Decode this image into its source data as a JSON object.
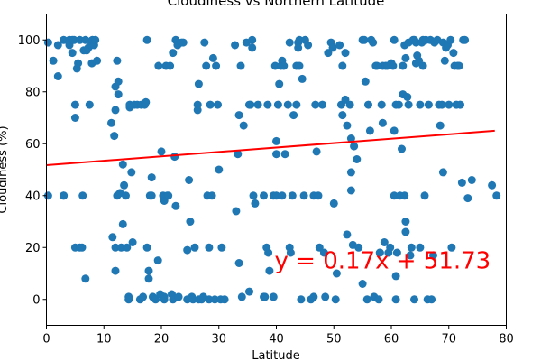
{
  "chart_data": {
    "type": "scatter",
    "title": "Cloudiness vs Northern Latitude",
    "xlabel": "Latitude",
    "ylabel": "Cloudiness (%)",
    "xlim": [
      0,
      80
    ],
    "ylim": [
      -10,
      110
    ],
    "xticks": [
      "0",
      "10",
      "20",
      "30",
      "40",
      "50",
      "60",
      "70",
      "80"
    ],
    "yticks": [
      "0",
      "20",
      "40",
      "60",
      "80",
      "100"
    ],
    "grid": false,
    "colors": {
      "points": "#1f77b4",
      "regression": "#ff0000",
      "annotation": "#ff0000"
    },
    "regression": {
      "slope": 0.17,
      "intercept": 51.73,
      "x_range": [
        0,
        78
      ]
    },
    "annotation": {
      "text": "y = 0.17x + 51.73",
      "x": 40,
      "y": 15
    },
    "points": [
      [
        0.3,
        99
      ],
      [
        0.3,
        40
      ],
      [
        1.2,
        92
      ],
      [
        2,
        86
      ],
      [
        2,
        98
      ],
      [
        3,
        40
      ],
      [
        3,
        100
      ],
      [
        3,
        40
      ],
      [
        4,
        100
      ],
      [
        4,
        98
      ],
      [
        4,
        99
      ],
      [
        4.5,
        95
      ],
      [
        4.5,
        100
      ],
      [
        4.8,
        100
      ],
      [
        5,
        75
      ],
      [
        5,
        70
      ],
      [
        5,
        20
      ],
      [
        5.3,
        89
      ],
      [
        5.5,
        91
      ],
      [
        5.8,
        100
      ],
      [
        5.8,
        20
      ],
      [
        6.2,
        20
      ],
      [
        6.3,
        40
      ],
      [
        6.5,
        96
      ],
      [
        6.8,
        100
      ],
      [
        6.8,
        8
      ],
      [
        7,
        96
      ],
      [
        7.3,
        97
      ],
      [
        7.5,
        75
      ],
      [
        7.8,
        98
      ],
      [
        7.9,
        91
      ],
      [
        8,
        100
      ],
      [
        8.3,
        98
      ],
      [
        8.5,
        100
      ],
      [
        8.8,
        92
      ],
      [
        11.3,
        68
      ],
      [
        11.5,
        24
      ],
      [
        11.8,
        63
      ],
      [
        12,
        82
      ],
      [
        12,
        73
      ],
      [
        12,
        20
      ],
      [
        12,
        11
      ],
      [
        12.3,
        92
      ],
      [
        12.3,
        40
      ],
      [
        12.5,
        84
      ],
      [
        12.5,
        79
      ],
      [
        12.8,
        41
      ],
      [
        13,
        20
      ],
      [
        13.3,
        52
      ],
      [
        13.3,
        29
      ],
      [
        13.5,
        44
      ],
      [
        13.8,
        40
      ],
      [
        14,
        20
      ],
      [
        14.3,
        1
      ],
      [
        14.3,
        0
      ],
      [
        14.5,
        74
      ],
      [
        14.5,
        75
      ],
      [
        14.8,
        49
      ],
      [
        15,
        22
      ],
      [
        15.3,
        75
      ],
      [
        15.8,
        75
      ],
      [
        16.3,
        0
      ],
      [
        16.5,
        75
      ],
      [
        16.8,
        1
      ],
      [
        17.1,
        75
      ],
      [
        17.3,
        76
      ],
      [
        17.5,
        100
      ],
      [
        17.5,
        20
      ],
      [
        17.8,
        11
      ],
      [
        17.8,
        8
      ],
      [
        18,
        40
      ],
      [
        18.3,
        47
      ],
      [
        18.3,
        40
      ],
      [
        18.5,
        1
      ],
      [
        19,
        0
      ],
      [
        19.4,
        15
      ],
      [
        19.5,
        90
      ],
      [
        19.8,
        2
      ],
      [
        20,
        57
      ],
      [
        20.3,
        40
      ],
      [
        20.5,
        1
      ],
      [
        20.5,
        0
      ],
      [
        20.5,
        38
      ],
      [
        20.8,
        90
      ],
      [
        21,
        40
      ],
      [
        21.2,
        40
      ],
      [
        21.5,
        90
      ],
      [
        21.8,
        2
      ],
      [
        22,
        95
      ],
      [
        22,
        0
      ],
      [
        22.3,
        55
      ],
      [
        22.5,
        36
      ],
      [
        22.5,
        100
      ],
      [
        22.8,
        98
      ],
      [
        23,
        1
      ],
      [
        23.5,
        99
      ],
      [
        23.8,
        99
      ],
      [
        24.5,
        0
      ],
      [
        24.5,
        19
      ],
      [
        24.8,
        46
      ],
      [
        25,
        30
      ],
      [
        25.3,
        1
      ],
      [
        25.5,
        0
      ],
      [
        25.8,
        20
      ],
      [
        26.5,
        0
      ],
      [
        26.3,
        75
      ],
      [
        26.3,
        73
      ],
      [
        26.5,
        83
      ],
      [
        27,
        0
      ],
      [
        27.3,
        1
      ],
      [
        27.5,
        99
      ],
      [
        27.8,
        90
      ],
      [
        28,
        40
      ],
      [
        28.3,
        20
      ],
      [
        28.3,
        0
      ],
      [
        28.5,
        75
      ],
      [
        28.8,
        40
      ],
      [
        29,
        93
      ],
      [
        29.3,
        0
      ],
      [
        29.5,
        90
      ],
      [
        29.8,
        75
      ],
      [
        30,
        50
      ],
      [
        30.3,
        0
      ],
      [
        30.5,
        20
      ],
      [
        31,
        0
      ],
      [
        32.8,
        98
      ],
      [
        33,
        34
      ],
      [
        33.3,
        56
      ],
      [
        33.5,
        71
      ],
      [
        33.5,
        14
      ],
      [
        33.8,
        90
      ],
      [
        34,
        1
      ],
      [
        34.3,
        67
      ],
      [
        34.8,
        99
      ],
      [
        35.3,
        3
      ],
      [
        35.3,
        75
      ],
      [
        35.5,
        75
      ],
      [
        35.8,
        100
      ],
      [
        35.8,
        97
      ],
      [
        36,
        40
      ],
      [
        36.3,
        37
      ],
      [
        36.8,
        75
      ],
      [
        37.8,
        40
      ],
      [
        37.8,
        1
      ],
      [
        38,
        1
      ],
      [
        38.3,
        20
      ],
      [
        38.5,
        75
      ],
      [
        38.6,
        18
      ],
      [
        38.8,
        11
      ],
      [
        39.5,
        40
      ],
      [
        39.5,
        1
      ],
      [
        39.8,
        90
      ],
      [
        40,
        61
      ],
      [
        40,
        56
      ],
      [
        40,
        40
      ],
      [
        40.3,
        75
      ],
      [
        40.5,
        83
      ],
      [
        40.8,
        90
      ],
      [
        41,
        92
      ],
      [
        41,
        40
      ],
      [
        41.3,
        90
      ],
      [
        41.5,
        56
      ],
      [
        42,
        75
      ],
      [
        42.3,
        99
      ],
      [
        42.3,
        20
      ],
      [
        42.5,
        18
      ],
      [
        42.8,
        40
      ],
      [
        43,
        71
      ],
      [
        43.5,
        90
      ],
      [
        43.5,
        75
      ],
      [
        43.8,
        99
      ],
      [
        43.8,
        97
      ],
      [
        44,
        90
      ],
      [
        44,
        100
      ],
      [
        44.3,
        0
      ],
      [
        44.5,
        85
      ],
      [
        44.8,
        40
      ],
      [
        45,
        100
      ],
      [
        45.5,
        98
      ],
      [
        46,
        0
      ],
      [
        46.5,
        40
      ],
      [
        46.5,
        1
      ],
      [
        46.8,
        75
      ],
      [
        47,
        57
      ],
      [
        47.3,
        40
      ],
      [
        47.5,
        20
      ],
      [
        48,
        75
      ],
      [
        48.3,
        18
      ],
      [
        48.5,
        1
      ],
      [
        49,
        95
      ],
      [
        49.5,
        99
      ],
      [
        49.8,
        97
      ],
      [
        50,
        37
      ],
      [
        50.3,
        0
      ],
      [
        50.5,
        10
      ],
      [
        51,
        98
      ],
      [
        51.3,
        75
      ],
      [
        51.5,
        71
      ],
      [
        51.5,
        90
      ],
      [
        52,
        95
      ],
      [
        52,
        77
      ],
      [
        52.3,
        67
      ],
      [
        52.3,
        25
      ],
      [
        52.8,
        75
      ],
      [
        53,
        62
      ],
      [
        53,
        49
      ],
      [
        53,
        42
      ],
      [
        53.3,
        21
      ],
      [
        53.5,
        59
      ],
      [
        54,
        54
      ],
      [
        54.3,
        20
      ],
      [
        55,
        100
      ],
      [
        55,
        6
      ],
      [
        55.3,
        100
      ],
      [
        55.5,
        84
      ],
      [
        55.8,
        0
      ],
      [
        56,
        75
      ],
      [
        56.3,
        65
      ],
      [
        56.5,
        100
      ],
      [
        56.8,
        99
      ],
      [
        57,
        1
      ],
      [
        57.3,
        90
      ],
      [
        57.5,
        90
      ],
      [
        57.8,
        0
      ],
      [
        58,
        18
      ],
      [
        58,
        18
      ],
      [
        58.3,
        75
      ],
      [
        58.5,
        90
      ],
      [
        58.5,
        68
      ],
      [
        58.8,
        22
      ],
      [
        59,
        90
      ],
      [
        59.3,
        90
      ],
      [
        59.5,
        18
      ],
      [
        59.8,
        20
      ],
      [
        60,
        91
      ],
      [
        60.3,
        90
      ],
      [
        60.5,
        100
      ],
      [
        60.5,
        65
      ],
      [
        60.5,
        40
      ],
      [
        60.8,
        75
      ],
      [
        60.8,
        9
      ],
      [
        60.8,
        0
      ],
      [
        61,
        18
      ],
      [
        61.3,
        75
      ],
      [
        61.5,
        40
      ],
      [
        61.8,
        58
      ],
      [
        62,
        90
      ],
      [
        62,
        79
      ],
      [
        62.3,
        40
      ],
      [
        62.3,
        98
      ],
      [
        62.5,
        93
      ],
      [
        62.5,
        30
      ],
      [
        62.5,
        26
      ],
      [
        62.8,
        78
      ],
      [
        63,
        99
      ],
      [
        63,
        75
      ],
      [
        63.3,
        17
      ],
      [
        63.5,
        20
      ],
      [
        63.8,
        100
      ],
      [
        64,
        0
      ],
      [
        64,
        100
      ],
      [
        64.3,
        91
      ],
      [
        64.3,
        99
      ],
      [
        64.5,
        94
      ],
      [
        64.8,
        92
      ],
      [
        65,
        20
      ],
      [
        65,
        75
      ],
      [
        65.3,
        99
      ],
      [
        65.5,
        100
      ],
      [
        65.5,
        90
      ],
      [
        65.8,
        40
      ],
      [
        66,
        100
      ],
      [
        66.3,
        0
      ],
      [
        66.5,
        75
      ],
      [
        66.8,
        100
      ],
      [
        67,
        0
      ],
      [
        67.3,
        17
      ],
      [
        67.5,
        99
      ],
      [
        68,
        100
      ],
      [
        68.3,
        75
      ],
      [
        68.5,
        67
      ],
      [
        68.8,
        75
      ],
      [
        69,
        49
      ],
      [
        69,
        99
      ],
      [
        69.3,
        92
      ],
      [
        69.5,
        97
      ],
      [
        69.8,
        98
      ],
      [
        70,
        75
      ],
      [
        70.3,
        100
      ],
      [
        70.5,
        20
      ],
      [
        70.8,
        95
      ],
      [
        71,
        90
      ],
      [
        71.3,
        75
      ],
      [
        71.5,
        90
      ],
      [
        71.8,
        90
      ],
      [
        72,
        75
      ],
      [
        72.3,
        45
      ],
      [
        72.5,
        100
      ],
      [
        72.8,
        100
      ],
      [
        73.3,
        39
      ],
      [
        74,
        46
      ],
      [
        77.5,
        44
      ],
      [
        78.3,
        40
      ]
    ]
  }
}
